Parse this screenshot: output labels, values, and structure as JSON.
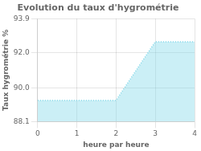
{
  "chart_data": {
    "type": "area",
    "title": "Evolution du taux d'hygrométrie",
    "xlabel": "heure par heure",
    "ylabel": "Taux hygrométrie %",
    "x": [
      0,
      1,
      2,
      3,
      4
    ],
    "values": [
      89.3,
      89.3,
      89.3,
      92.6,
      92.6
    ],
    "color": "#7dd6e8",
    "line_style": "dotted",
    "xlim": [
      0,
      4
    ],
    "ylim": [
      88.1,
      93.9
    ],
    "xticks": [
      0,
      1,
      2,
      3,
      4
    ],
    "yticks": [
      88.1,
      {
        "value": 90,
        "label": "90.0"
      },
      {
        "value": 92,
        "label": "92.0"
      },
      93.9
    ],
    "grid": true
  }
}
